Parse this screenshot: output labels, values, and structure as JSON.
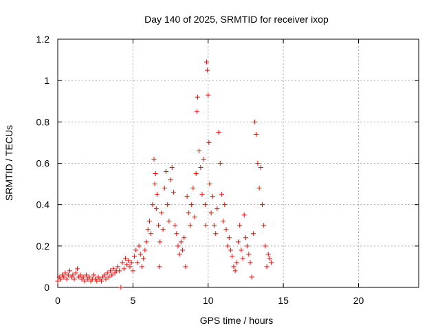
{
  "chart_data": {
    "type": "scatter",
    "title": "Day 140 of 2025, SRMTID for receiver ixop",
    "xlabel": "GPS time / hours",
    "ylabel": "SRMTID / TECUs",
    "xlim": [
      0,
      24
    ],
    "ylim": [
      0,
      1.2
    ],
    "xticks": [
      0,
      5,
      10,
      15,
      20
    ],
    "yticks": [
      0,
      0.2,
      0.4,
      0.6,
      0.8,
      1,
      1.2
    ],
    "xtick_labels": [
      "0",
      "5",
      "10",
      "15",
      "20"
    ],
    "ytick_labels": [
      "0",
      "0.2",
      "0.4",
      "0.6",
      "0.8",
      "1",
      "1.2"
    ],
    "grid": true,
    "marker": "+",
    "color": "#ff0000",
    "series": [
      {
        "name": "SRMTID",
        "points": [
          [
            0.0,
            0.03
          ],
          [
            0.1,
            0.05
          ],
          [
            0.2,
            0.04
          ],
          [
            0.3,
            0.06
          ],
          [
            0.4,
            0.05
          ],
          [
            0.5,
            0.07
          ],
          [
            0.6,
            0.04
          ],
          [
            0.7,
            0.06
          ],
          [
            0.8,
            0.08
          ],
          [
            0.9,
            0.05
          ],
          [
            1.0,
            0.06
          ],
          [
            1.1,
            0.04
          ],
          [
            1.2,
            0.07
          ],
          [
            1.3,
            0.09
          ],
          [
            1.4,
            0.05
          ],
          [
            1.5,
            0.06
          ],
          [
            1.6,
            0.04
          ],
          [
            1.7,
            0.05
          ],
          [
            1.8,
            0.03
          ],
          [
            1.9,
            0.06
          ],
          [
            2.0,
            0.04
          ],
          [
            2.1,
            0.05
          ],
          [
            2.2,
            0.03
          ],
          [
            2.3,
            0.04
          ],
          [
            2.4,
            0.06
          ],
          [
            2.5,
            0.04
          ],
          [
            2.6,
            0.03
          ],
          [
            2.7,
            0.05
          ],
          [
            2.8,
            0.04
          ],
          [
            2.9,
            0.03
          ],
          [
            3.0,
            0.05
          ],
          [
            3.1,
            0.06
          ],
          [
            3.2,
            0.04
          ],
          [
            3.3,
            0.07
          ],
          [
            3.4,
            0.05
          ],
          [
            3.5,
            0.08
          ],
          [
            3.6,
            0.06
          ],
          [
            3.7,
            0.09
          ],
          [
            3.8,
            0.07
          ],
          [
            3.9,
            0.08
          ],
          [
            4.0,
            0.1
          ],
          [
            4.1,
            0.08
          ],
          [
            4.2,
            0.0
          ],
          [
            4.3,
            0.12
          ],
          [
            4.4,
            0.09
          ],
          [
            4.5,
            0.14
          ],
          [
            4.6,
            0.11
          ],
          [
            4.7,
            0.13
          ],
          [
            4.8,
            0.1
          ],
          [
            4.9,
            0.12
          ],
          [
            5.0,
            0.08
          ],
          [
            5.1,
            0.15
          ],
          [
            5.2,
            0.18
          ],
          [
            5.3,
            0.12
          ],
          [
            5.4,
            0.2
          ],
          [
            5.5,
            0.16
          ],
          [
            5.6,
            0.1
          ],
          [
            5.7,
            0.14
          ],
          [
            5.8,
            0.18
          ],
          [
            5.9,
            0.22
          ],
          [
            6.0,
            0.28
          ],
          [
            6.1,
            0.32
          ],
          [
            6.2,
            0.26
          ],
          [
            6.3,
            0.4
          ],
          [
            6.4,
            0.62
          ],
          [
            6.45,
            0.5
          ],
          [
            6.5,
            0.55
          ],
          [
            6.55,
            0.38
          ],
          [
            6.6,
            0.45
          ],
          [
            6.7,
            0.3
          ],
          [
            6.75,
            0.1
          ],
          [
            6.8,
            0.22
          ],
          [
            6.9,
            0.36
          ],
          [
            7.0,
            0.28
          ],
          [
            7.1,
            0.48
          ],
          [
            7.2,
            0.56
          ],
          [
            7.3,
            0.4
          ],
          [
            7.4,
            0.32
          ],
          [
            7.5,
            0.52
          ],
          [
            7.6,
            0.58
          ],
          [
            7.7,
            0.46
          ],
          [
            7.8,
            0.3
          ],
          [
            7.9,
            0.26
          ],
          [
            8.0,
            0.2
          ],
          [
            8.1,
            0.16
          ],
          [
            8.2,
            0.22
          ],
          [
            8.3,
            0.18
          ],
          [
            8.4,
            0.24
          ],
          [
            8.5,
            0.1
          ],
          [
            8.6,
            0.44
          ],
          [
            8.7,
            0.36
          ],
          [
            8.8,
            0.3
          ],
          [
            8.9,
            0.4
          ],
          [
            9.0,
            0.48
          ],
          [
            9.1,
            0.34
          ],
          [
            9.2,
            0.55
          ],
          [
            9.25,
            0.85
          ],
          [
            9.3,
            0.92
          ],
          [
            9.4,
            0.66
          ],
          [
            9.5,
            0.58
          ],
          [
            9.6,
            0.45
          ],
          [
            9.7,
            0.62
          ],
          [
            9.8,
            0.4
          ],
          [
            9.85,
            0.3
          ],
          [
            9.9,
            1.09
          ],
          [
            9.95,
            1.05
          ],
          [
            10.0,
            0.93
          ],
          [
            10.05,
            0.7
          ],
          [
            10.1,
            0.5
          ],
          [
            10.2,
            0.36
          ],
          [
            10.3,
            0.44
          ],
          [
            10.4,
            0.3
          ],
          [
            10.5,
            0.26
          ],
          [
            10.6,
            0.38
          ],
          [
            10.7,
            0.75
          ],
          [
            10.8,
            0.6
          ],
          [
            10.9,
            0.45
          ],
          [
            11.0,
            0.32
          ],
          [
            11.1,
            0.4
          ],
          [
            11.2,
            0.28
          ],
          [
            11.3,
            0.2
          ],
          [
            11.4,
            0.24
          ],
          [
            11.5,
            0.18
          ],
          [
            11.6,
            0.15
          ],
          [
            11.7,
            0.1
          ],
          [
            11.8,
            0.08
          ],
          [
            11.9,
            0.12
          ],
          [
            12.0,
            0.22
          ],
          [
            12.1,
            0.3
          ],
          [
            12.2,
            0.18
          ],
          [
            12.3,
            0.14
          ],
          [
            12.4,
            0.35
          ],
          [
            12.5,
            0.24
          ],
          [
            12.6,
            0.2
          ],
          [
            12.7,
            0.16
          ],
          [
            12.8,
            0.12
          ],
          [
            12.9,
            0.05
          ],
          [
            13.0,
            0.26
          ],
          [
            13.1,
            0.8
          ],
          [
            13.2,
            0.74
          ],
          [
            13.3,
            0.6
          ],
          [
            13.4,
            0.48
          ],
          [
            13.5,
            0.58
          ],
          [
            13.6,
            0.4
          ],
          [
            13.7,
            0.3
          ],
          [
            13.8,
            0.2
          ],
          [
            13.9,
            0.1
          ],
          [
            14.0,
            0.16
          ],
          [
            14.1,
            0.14
          ],
          [
            14.2,
            0.12
          ]
        ]
      }
    ]
  }
}
